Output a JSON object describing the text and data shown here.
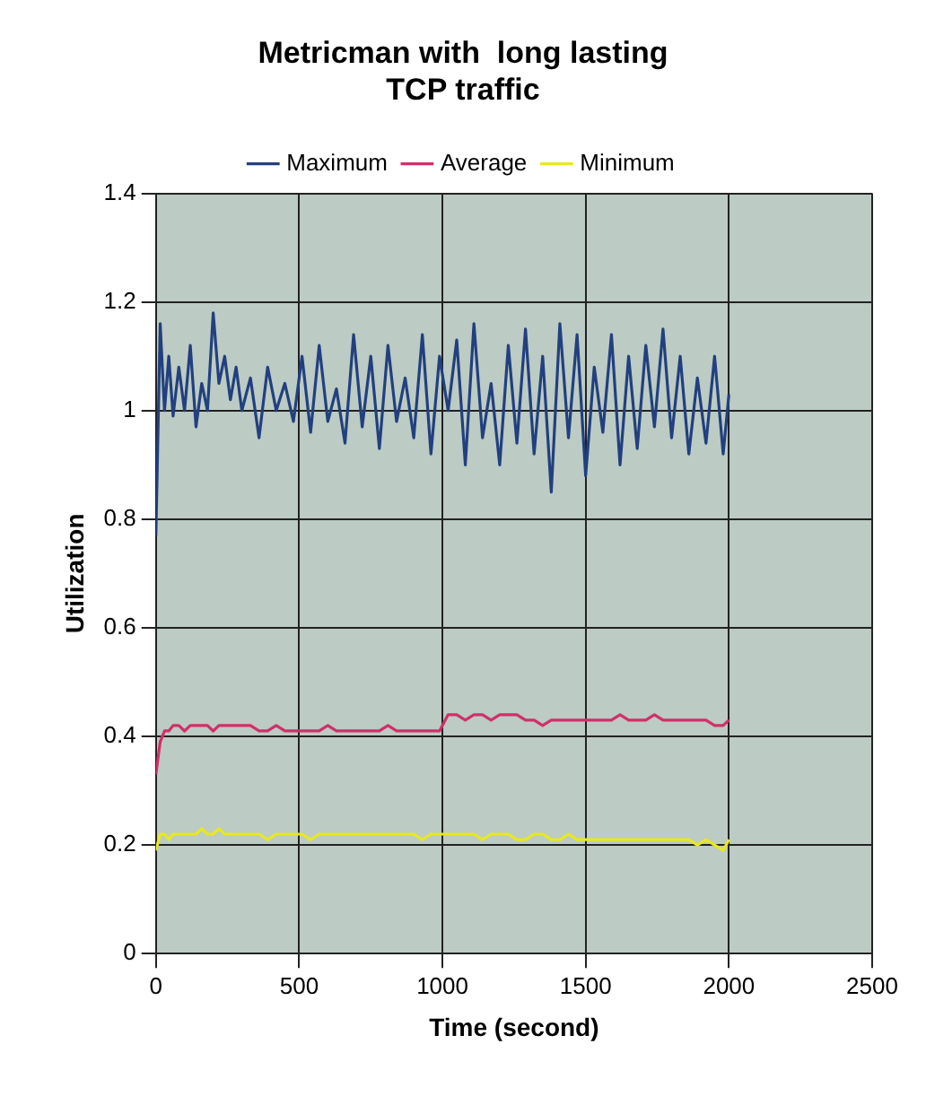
{
  "chart_data": {
    "type": "line",
    "title": "Metricman with  long lasting TCP traffic",
    "xlabel": "Time (second)",
    "ylabel": "Utilization",
    "x": [
      0,
      15,
      30,
      45,
      60,
      80,
      100,
      120,
      140,
      160,
      180,
      200,
      220,
      240,
      260,
      280,
      300,
      330,
      360,
      390,
      420,
      450,
      480,
      510,
      540,
      570,
      600,
      630,
      660,
      690,
      720,
      750,
      780,
      810,
      840,
      870,
      900,
      930,
      960,
      990,
      1020,
      1050,
      1080,
      1110,
      1140,
      1170,
      1200,
      1230,
      1260,
      1290,
      1320,
      1350,
      1380,
      1410,
      1440,
      1470,
      1500,
      1530,
      1560,
      1590,
      1620,
      1650,
      1680,
      1710,
      1740,
      1770,
      1800,
      1830,
      1860,
      1890,
      1920,
      1950,
      1980,
      2000
    ],
    "series": [
      {
        "name": "Maximum",
        "color": "#22407f",
        "values": [
          0.77,
          1.16,
          1.0,
          1.1,
          0.99,
          1.08,
          1.0,
          1.12,
          0.97,
          1.05,
          1.0,
          1.18,
          1.05,
          1.1,
          1.02,
          1.08,
          1.0,
          1.06,
          0.95,
          1.08,
          1.0,
          1.05,
          0.98,
          1.1,
          0.96,
          1.12,
          0.98,
          1.04,
          0.94,
          1.14,
          0.97,
          1.1,
          0.93,
          1.12,
          0.98,
          1.06,
          0.95,
          1.14,
          0.92,
          1.1,
          1.0,
          1.13,
          0.9,
          1.16,
          0.95,
          1.05,
          0.9,
          1.12,
          0.94,
          1.15,
          0.92,
          1.1,
          0.85,
          1.16,
          0.95,
          1.14,
          0.88,
          1.08,
          0.96,
          1.14,
          0.9,
          1.1,
          0.93,
          1.12,
          0.97,
          1.15,
          0.95,
          1.1,
          0.92,
          1.06,
          0.94,
          1.1,
          0.92,
          1.03
        ]
      },
      {
        "name": "Average",
        "color": "#d0306a",
        "values": [
          0.33,
          0.39,
          0.41,
          0.41,
          0.42,
          0.42,
          0.41,
          0.42,
          0.42,
          0.42,
          0.42,
          0.41,
          0.42,
          0.42,
          0.42,
          0.42,
          0.42,
          0.42,
          0.41,
          0.41,
          0.42,
          0.41,
          0.41,
          0.41,
          0.41,
          0.41,
          0.42,
          0.41,
          0.41,
          0.41,
          0.41,
          0.41,
          0.41,
          0.42,
          0.41,
          0.41,
          0.41,
          0.41,
          0.41,
          0.41,
          0.44,
          0.44,
          0.43,
          0.44,
          0.44,
          0.43,
          0.44,
          0.44,
          0.44,
          0.43,
          0.43,
          0.42,
          0.43,
          0.43,
          0.43,
          0.43,
          0.43,
          0.43,
          0.43,
          0.43,
          0.44,
          0.43,
          0.43,
          0.43,
          0.44,
          0.43,
          0.43,
          0.43,
          0.43,
          0.43,
          0.43,
          0.42,
          0.42,
          0.43
        ]
      },
      {
        "name": "Minimum",
        "color": "#e8e820",
        "values": [
          0.19,
          0.22,
          0.22,
          0.21,
          0.22,
          0.22,
          0.22,
          0.22,
          0.22,
          0.23,
          0.22,
          0.22,
          0.23,
          0.22,
          0.22,
          0.22,
          0.22,
          0.22,
          0.22,
          0.21,
          0.22,
          0.22,
          0.22,
          0.22,
          0.21,
          0.22,
          0.22,
          0.22,
          0.22,
          0.22,
          0.22,
          0.22,
          0.22,
          0.22,
          0.22,
          0.22,
          0.22,
          0.21,
          0.22,
          0.22,
          0.22,
          0.22,
          0.22,
          0.22,
          0.21,
          0.22,
          0.22,
          0.22,
          0.21,
          0.21,
          0.22,
          0.22,
          0.21,
          0.21,
          0.22,
          0.21,
          0.21,
          0.21,
          0.21,
          0.21,
          0.21,
          0.21,
          0.21,
          0.21,
          0.21,
          0.21,
          0.21,
          0.21,
          0.21,
          0.2,
          0.21,
          0.2,
          0.19,
          0.21
        ]
      }
    ],
    "xlim": [
      0,
      2500
    ],
    "xticks": [
      0,
      500,
      1000,
      1500,
      2000,
      2500
    ],
    "ylim": [
      0,
      1.4
    ],
    "yticks": [
      0,
      0.2,
      0.4,
      0.6,
      0.8,
      1,
      1.2,
      1.4
    ],
    "grid": true,
    "legend": "top",
    "marker": "none",
    "line_style": "solid"
  }
}
